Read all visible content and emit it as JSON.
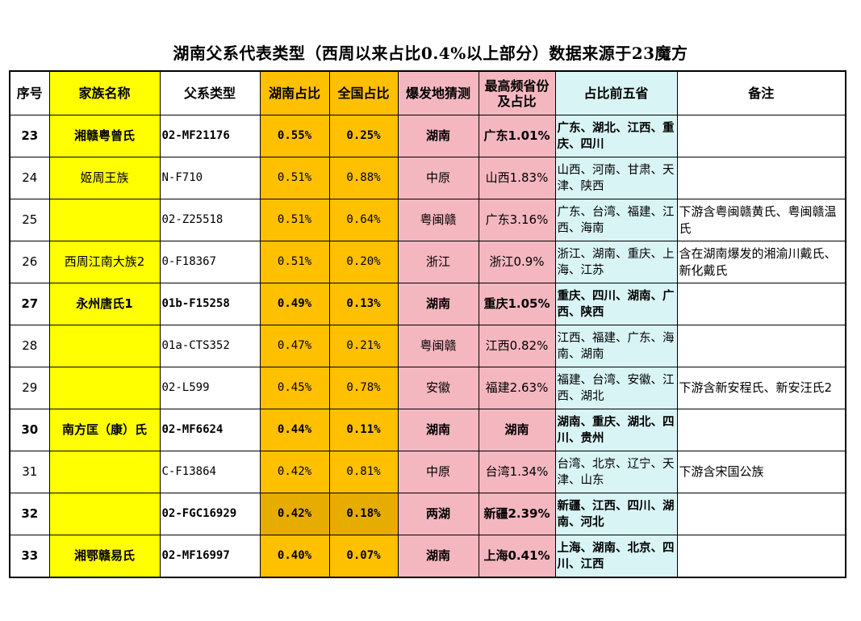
{
  "title": "湖南父系代表类型（西周以来占比0.4%以上部分）数据来源于23魔方",
  "headers": [
    "序号",
    "家族名称",
    "父系类型",
    "湖南占比",
    "全国占比",
    "爆发地猜测",
    "最高频省份及占比",
    "占比前五省",
    "备注"
  ],
  "rows": [
    {
      "idx": "23",
      "family": "湘赣粤曾氏",
      "type": "02-MF21176",
      "hunan": "0.55%",
      "national": "0.25%",
      "burst": "湖南",
      "max": "广东1.01%",
      "top5": "广东、湖北、江西、重庆、四川",
      "note": "",
      "bold": true
    },
    {
      "idx": "24",
      "family": "姬周王族",
      "type": "N-F710",
      "hunan": "0.51%",
      "national": "0.88%",
      "burst": "中原",
      "max": "山西1.83%",
      "top5": "山西、河南、甘肃、天津、陕西",
      "note": "",
      "bold": false
    },
    {
      "idx": "25",
      "family": "",
      "type": "02-Z25518",
      "hunan": "0.51%",
      "national": "0.64%",
      "burst": "粤闽赣",
      "max": "广东3.16%",
      "top5": "广东、台湾、福建、江西、海南",
      "note": "下游含粤闽赣黄氏、粤闽赣温氏",
      "bold": false
    },
    {
      "idx": "26",
      "family": "西周江南大族2",
      "type": "0-F18367",
      "hunan": "0.51%",
      "national": "0.20%",
      "burst": "浙江",
      "max": "浙江0.9%",
      "top5": "浙江、湖南、重庆、上海、江苏",
      "note": "含在湖南爆发的湘渝川戴氏、新化戴氏",
      "bold": false
    },
    {
      "idx": "27",
      "family": "永州唐氏1",
      "type": "01b-F15258",
      "hunan": "0.49%",
      "national": "0.13%",
      "burst": "湖南",
      "max": "重庆1.05%",
      "top5": "重庆、四川、湖南、广西、陕西",
      "note": "",
      "bold": true
    },
    {
      "idx": "28",
      "family": "",
      "type": "01a-CTS352",
      "hunan": "0.47%",
      "national": "0.21%",
      "burst": "粤闽赣",
      "max": "江西0.82%",
      "top5": "江西、福建、广东、海南、湖南",
      "note": "",
      "bold": false
    },
    {
      "idx": "29",
      "family": "",
      "type": "02-L599",
      "hunan": "0.45%",
      "national": "0.78%",
      "burst": "安徽",
      "max": "福建2.63%",
      "top5": "福建、台湾、安徽、江西、湖北",
      "note": "下游含新安程氏、新安汪氏2",
      "bold": false
    },
    {
      "idx": "30",
      "family": "南方匡（康）氏",
      "type": "02-MF6624",
      "hunan": "0.44%",
      "national": "0.11%",
      "burst": "湖南",
      "max": "湖南",
      "top5": "湖南、重庆、湖北、四川、贵州",
      "note": "",
      "bold": true
    },
    {
      "idx": "31",
      "family": "",
      "type": "C-F13864",
      "hunan": "0.42%",
      "national": "0.81%",
      "burst": "中原",
      "max": "台湾1.34%",
      "top5": "台湾、北京、辽宁、天津、山东",
      "note": "下游含宋国公族",
      "bold": false
    },
    {
      "idx": "32",
      "family": "",
      "type": "02-FGC16929",
      "hunan": "0.42%",
      "national": "0.18%",
      "burst": "两湖",
      "max": "新疆2.39%",
      "top5": "新疆、江西、四川、湖南、河北",
      "note": "",
      "bold": true,
      "dark": true
    },
    {
      "idx": "33",
      "family": "湘鄂赣易氏",
      "type": "02-MF16997",
      "hunan": "0.40%",
      "national": "0.07%",
      "burst": "湖南",
      "max": "上海0.41%",
      "top5": "上海、湖南、北京、四川、江西",
      "note": "",
      "bold": true
    }
  ]
}
